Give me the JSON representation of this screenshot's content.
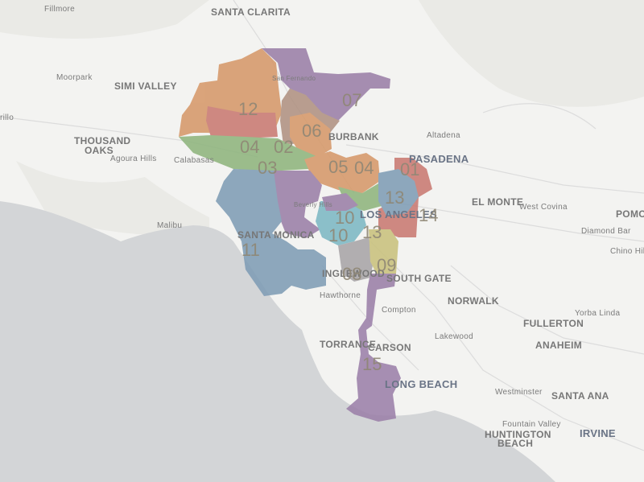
{
  "map": {
    "colors": {
      "land": "#f3f3f1",
      "water": "#d3d5d7",
      "road": "#dcdcdc",
      "purple": "#9b7fa8",
      "orange": "#d6996a",
      "red": "#c97a72",
      "green": "#8fb57e",
      "blue": "#7f9db5",
      "teal": "#7db8c4",
      "olive": "#c9c27e",
      "brown": "#b09282"
    },
    "places": [
      {
        "id": "fillmore",
        "label": "Fillmore"
      },
      {
        "id": "santa-clarita",
        "label": "SANTA CLARITA"
      },
      {
        "id": "moorpark",
        "label": "Moorpark"
      },
      {
        "id": "simi-valley",
        "label": "SIMI VALLEY"
      },
      {
        "id": "san-fernando",
        "label": "San Fernando"
      },
      {
        "id": "thousand-oaks",
        "label": "THOUSAND\nOAKS"
      },
      {
        "id": "agoura-hills",
        "label": "Agoura Hills"
      },
      {
        "id": "calabasas",
        "label": "Calabasas"
      },
      {
        "id": "burbank",
        "label": "BURBANK"
      },
      {
        "id": "altadena",
        "label": "Altadena"
      },
      {
        "id": "pasadena",
        "label": "PASADENA"
      },
      {
        "id": "el-monte",
        "label": "EL MONTE"
      },
      {
        "id": "west-covina",
        "label": "West Covina"
      },
      {
        "id": "pomona",
        "label": "POMON"
      },
      {
        "id": "diamond-bar",
        "label": "Diamond Bar"
      },
      {
        "id": "chino-hills",
        "label": "Chino Hill"
      },
      {
        "id": "malibu",
        "label": "Malibu"
      },
      {
        "id": "beverly-hills",
        "label": "Beverly Hills"
      },
      {
        "id": "los-angeles",
        "label": "LOS ANGELES"
      },
      {
        "id": "santa-monica",
        "label": "SANTA MONICA"
      },
      {
        "id": "inglewood",
        "label": "INGLEWOOD"
      },
      {
        "id": "south-gate",
        "label": "SOUTH GATE"
      },
      {
        "id": "hawthorne",
        "label": "Hawthorne"
      },
      {
        "id": "compton",
        "label": "Compton"
      },
      {
        "id": "norwalk",
        "label": "NORWALK"
      },
      {
        "id": "yorba-linda",
        "label": "Yorba Linda"
      },
      {
        "id": "fullerton",
        "label": "FULLERTON"
      },
      {
        "id": "lakewood",
        "label": "Lakewood"
      },
      {
        "id": "anaheim",
        "label": "ANAHEIM"
      },
      {
        "id": "torrance",
        "label": "TORRANCE"
      },
      {
        "id": "carson",
        "label": "CARSON"
      },
      {
        "id": "long-beach",
        "label": "LONG BEACH"
      },
      {
        "id": "westminster",
        "label": "Westminster"
      },
      {
        "id": "santa-ana",
        "label": "SANTA ANA"
      },
      {
        "id": "fountain-valley",
        "label": "Fountain Valley"
      },
      {
        "id": "huntington-beach",
        "label": "HUNTINGTON\nBEACH"
      },
      {
        "id": "irvine",
        "label": "IRVINE"
      },
      {
        "id": "rillo",
        "label": "rillo"
      }
    ],
    "districts": [
      {
        "id": "07",
        "label": "07"
      },
      {
        "id": "12",
        "label": "12"
      },
      {
        "id": "06",
        "label": "06"
      },
      {
        "id": "04",
        "label": "04"
      },
      {
        "id": "02",
        "label": "02"
      },
      {
        "id": "03",
        "label": "03"
      },
      {
        "id": "05",
        "label": "05"
      },
      {
        "id": "01",
        "label": "01"
      },
      {
        "id": "13",
        "label": "13"
      },
      {
        "id": "14",
        "label": "14"
      },
      {
        "id": "10",
        "label": "10"
      },
      {
        "id": "11",
        "label": "11"
      },
      {
        "id": "08",
        "label": "08"
      },
      {
        "id": "09",
        "label": "09"
      },
      {
        "id": "15",
        "label": "15"
      },
      {
        "id": "04b",
        "label": "04"
      },
      {
        "id": "10b",
        "label": "10"
      },
      {
        "id": "13b",
        "label": "13"
      }
    ]
  }
}
